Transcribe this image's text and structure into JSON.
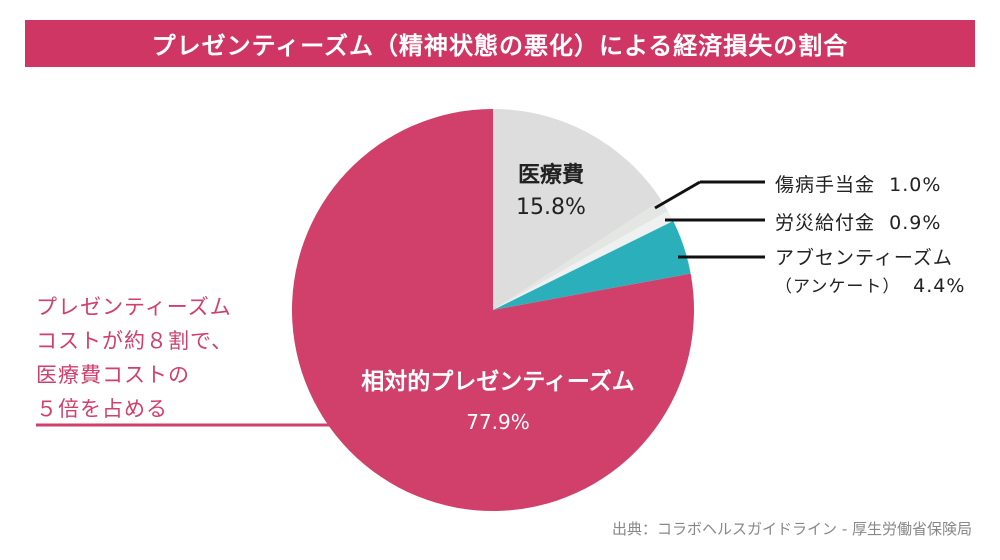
{
  "title": "プレゼンティーズム（精神状態の悪化）による経済損失の割合",
  "chart_data": {
    "type": "pie",
    "title": "プレゼンティーズム（精神状態の悪化）による経済損失の割合",
    "start": "12 o'clock, clockwise",
    "slices": [
      {
        "label": "医療費",
        "value": 15.8,
        "display": "15.8%",
        "color": "#dcdddc"
      },
      {
        "label": "傷病手当金",
        "value": 1.0,
        "display": "1.0%",
        "color": "#e4e6e4"
      },
      {
        "label": "労災給付金",
        "value": 0.9,
        "display": "0.9%",
        "color": "#eef1ef"
      },
      {
        "label": "アブセンティーズム",
        "sublabel": "（アンケート）",
        "value": 4.4,
        "display": "4.4%",
        "color": "#2bb0bb"
      },
      {
        "label": "相対的プレゼンティーズム",
        "value": 77.9,
        "display": "77.9%",
        "color": "#d13f6b"
      }
    ]
  },
  "annotation": "プレゼンティーズム\nコストが約８割で、\n医療費コストの\n５倍を占める",
  "source": "出典：コラボヘルスガイドライン - 厚生労働省保険局"
}
